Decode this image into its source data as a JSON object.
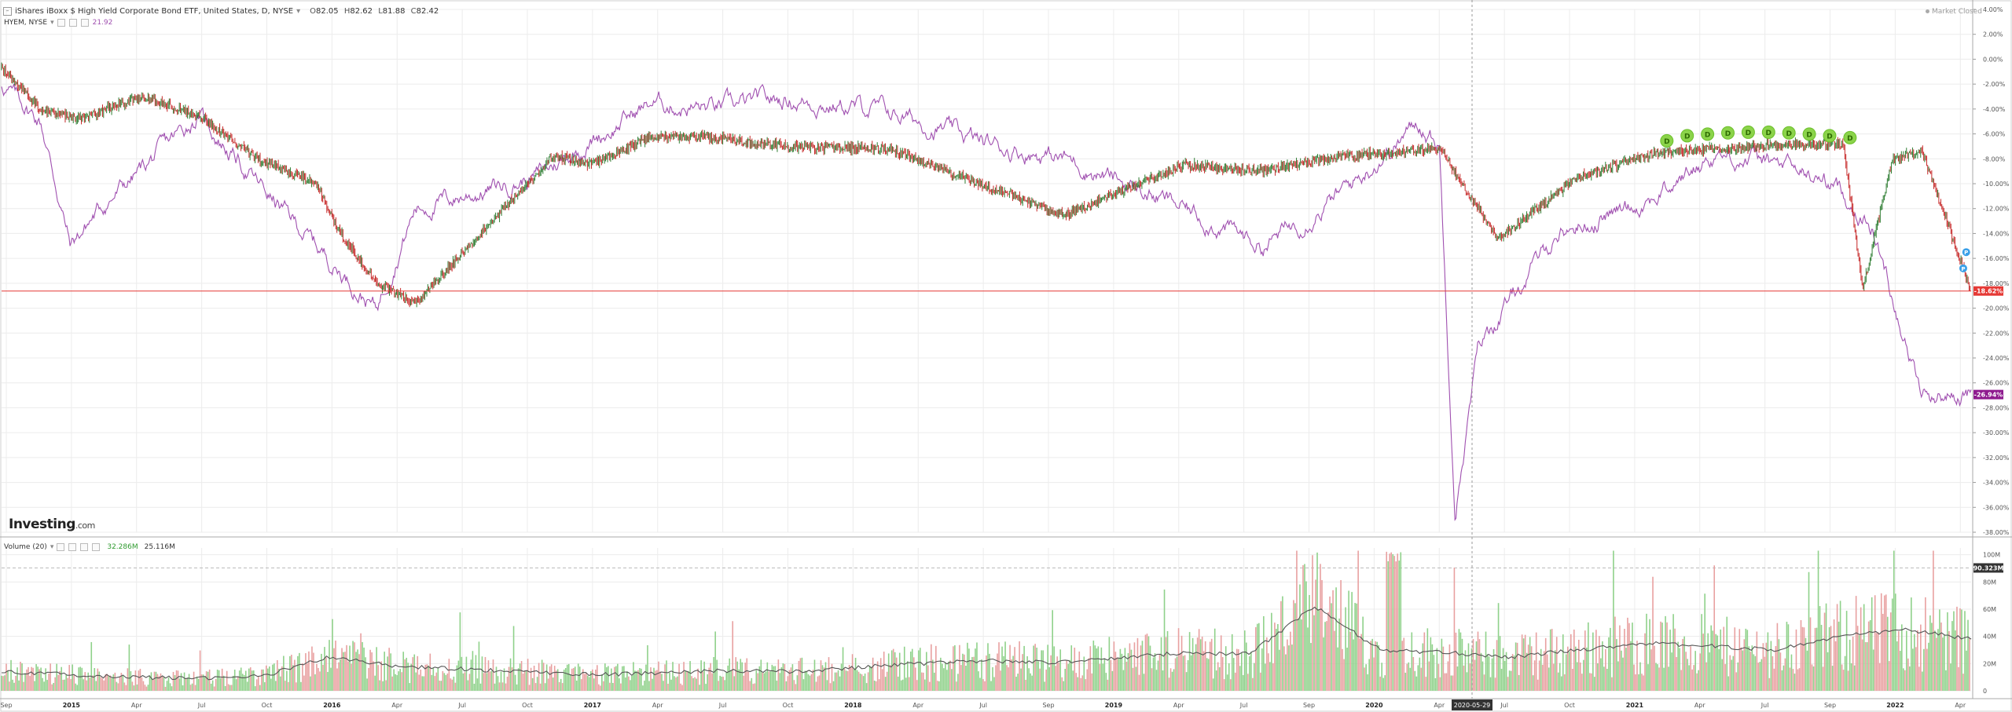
{
  "header": {
    "symbol_title": "iShares iBoxx $ High Yield Corporate Bond ETF, United States, D, NYSE",
    "ohlc": [
      {
        "k": "O",
        "v": "82.05"
      },
      {
        "k": "H",
        "v": "82.62"
      },
      {
        "k": "L",
        "v": "81.88"
      },
      {
        "k": "C",
        "v": "82.42"
      }
    ],
    "compare_symbol": "HYEM, NYSE",
    "compare_value": "21.92",
    "market_status": "Market Closed"
  },
  "volume_header": {
    "label": "Volume (20)",
    "value1": "32.286M",
    "value2": "25.116M"
  },
  "logo": {
    "main": "Investing",
    "suffix": ".com"
  },
  "colors": {
    "up": "#2e7d32",
    "down": "#c62828",
    "compare_line": "#a050b0",
    "hyg_badge": "#e53935",
    "hyem_badge": "#8e1a8e",
    "vol_up": "#8fd18a",
    "vol_down": "#e8a0a0",
    "dividend_marker": "#8bd34a",
    "grid": "#ececec"
  },
  "chart_data": [
    {
      "type": "line",
      "title": "iShares iBoxx $ High Yield Corporate Bond ETF, United States, D, NYSE",
      "x_ticks": [
        "Sep",
        "2015",
        "Apr",
        "Jul",
        "Oct",
        "2016",
        "Apr",
        "Jul",
        "Oct",
        "2017",
        "Apr",
        "Jul",
        "Oct",
        "2018",
        "Apr",
        "Jul",
        "Sep",
        "2019",
        "Apr",
        "Jul",
        "Sep",
        "2020",
        "Apr",
        "Jul",
        "Oct",
        "2021",
        "Apr",
        "Jul",
        "Sep",
        "2022",
        "Apr"
      ],
      "y_ticks": [
        "4.00%",
        "2.00%",
        "0.00%",
        "-2.00%",
        "-4.00%",
        "-6.00%",
        "-8.00%",
        "-10.00%",
        "-12.00%",
        "-14.00%",
        "-16.00%",
        "-18.00%",
        "-20.00%",
        "-22.00%",
        "-24.00%",
        "-26.00%",
        "-28.00%",
        "-30.00%",
        "-32.00%",
        "-34.00%",
        "-36.00%",
        "-38.00%"
      ],
      "ylim": [
        -38,
        4
      ],
      "y_unit": "%",
      "crosshair_date": "2020-05-29",
      "last_value_labels": [
        "-18.62%",
        "-26.94%"
      ],
      "dividend_marker_label": "D",
      "dividend_marker_count": 10,
      "earnings_marker_label": "P",
      "series": [
        {
          "name": "iShares iBoxx $ High Yield Corporate Bond ETF",
          "x": [
            0,
            0.02,
            0.04,
            0.07,
            0.1,
            0.13,
            0.16,
            0.17,
            0.19,
            0.21,
            0.28,
            0.3,
            0.33,
            0.36,
            0.4,
            0.45,
            0.5,
            0.54,
            0.6,
            0.64,
            0.68,
            0.73,
            0.76,
            0.8,
            0.84,
            0.89,
            0.935,
            0.945,
            0.96,
            0.975,
            1
          ],
          "y": [
            -0.8,
            -4,
            -4.8,
            -3,
            -4.5,
            -8,
            -10,
            -13.5,
            -18,
            -19.6,
            -7.8,
            -8.4,
            -6.2,
            -6.3,
            -7,
            -7.2,
            -10.2,
            -12.5,
            -8.5,
            -9,
            -7.8,
            -7.2,
            -14.4,
            -9.5,
            -7.5,
            -7,
            -6.8,
            -18.5,
            -8,
            -7.4,
            -18.62
          ]
        },
        {
          "name": "HYEM, NYSE",
          "x": [
            0,
            0.02,
            0.035,
            0.05,
            0.07,
            0.1,
            0.13,
            0.16,
            0.19,
            0.21,
            0.27,
            0.33,
            0.36,
            0.4,
            0.45,
            0.5,
            0.54,
            0.6,
            0.64,
            0.68,
            0.72,
            0.73,
            0.738,
            0.75,
            0.79,
            0.84,
            0.87,
            0.9,
            0.93,
            0.95,
            0.975,
            1
          ],
          "y": [
            -2,
            -5,
            -15,
            -12,
            -9,
            -4.5,
            -10,
            -15,
            -20,
            -12,
            -9.5,
            -3.5,
            -4,
            -3.2,
            -4.2,
            -6.8,
            -8,
            -12,
            -15,
            -10.8,
            -5,
            -7,
            -36,
            -23,
            -14,
            -11,
            -7.6,
            -8.4,
            -10,
            -13.6,
            -27,
            -26.94
          ]
        }
      ]
    },
    {
      "type": "bar",
      "title": "Volume (20)",
      "y_ticks": [
        "100M",
        "80M",
        "60M",
        "40M",
        "20M",
        "0"
      ],
      "ylim": [
        0,
        105
      ],
      "y_unit": "M",
      "last_value_label": "90.323M",
      "series": [
        {
          "name": "Volume",
          "description_values": "daily bars, average ~20M, spike ~100M in March 2020, later period ~40M"
        },
        {
          "name": "Volume MA (20)",
          "values": [
            14,
            12,
            10,
            9,
            11,
            25,
            18,
            16,
            14,
            12,
            13,
            15,
            14,
            17,
            20,
            22,
            21,
            24,
            28,
            27,
            62,
            30,
            28,
            25,
            30,
            35,
            33,
            30,
            40,
            45,
            38
          ]
        }
      ]
    }
  ]
}
